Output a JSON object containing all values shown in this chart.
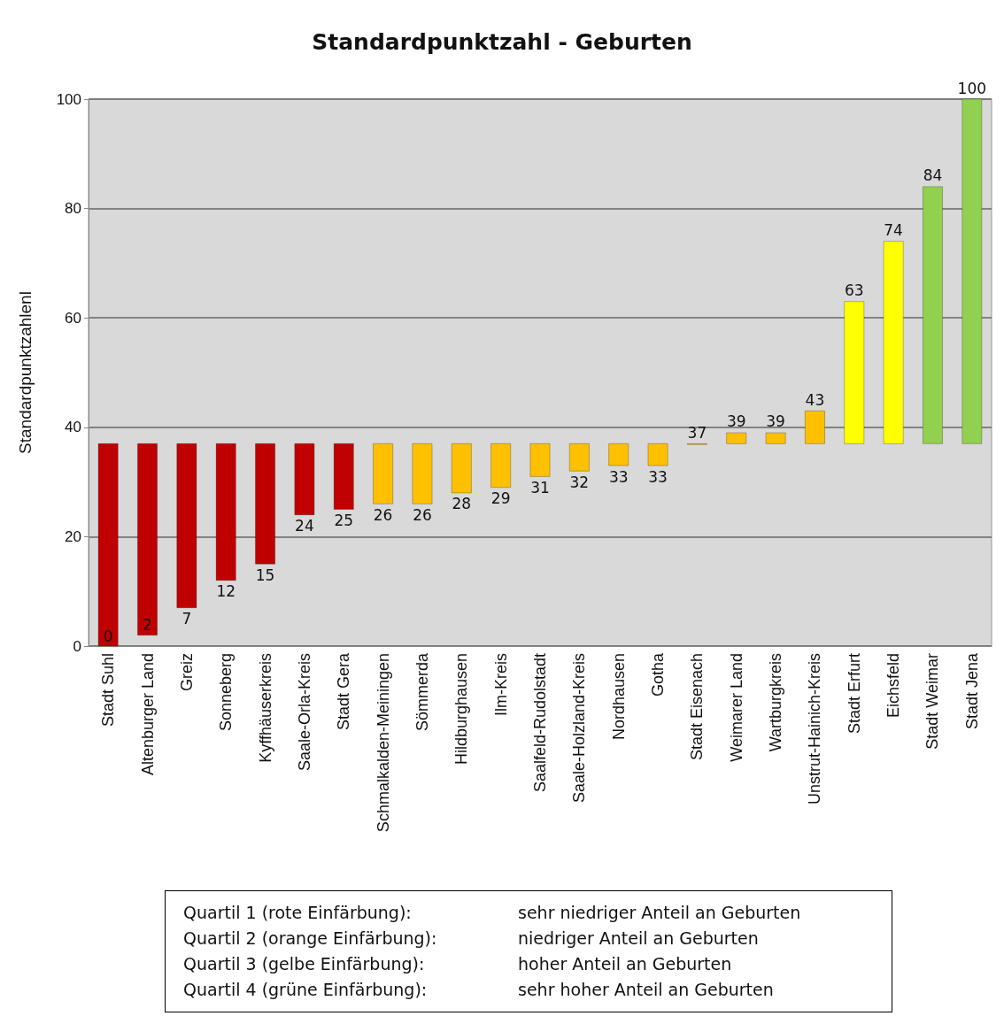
{
  "chart_data": {
    "type": "bar",
    "title": "Standardpunktzahl - Geburten",
    "ylabel": "Standardpunktzahlenl",
    "categories": [
      "Stadt Suhl",
      "Altenburger Land",
      "Greiz",
      "Sonneberg",
      "Kyffhäuserkreis",
      "Saale-Orla-Kreis",
      "Stadt Gera",
      "Schmalkalden-Meiningen",
      "Sömmerda",
      "Hildburghausen",
      "Ilm-Kreis",
      "Saalfeld-Rudolstadt",
      "Saale-Holzland-Kreis",
      "Nordhausen",
      "Gotha",
      "Stadt Eisenach",
      "Weimarer Land",
      "Wartburgkreis",
      "Unstrut-Hainich-Kreis",
      "Stadt Erfurt",
      "Eichsfeld",
      "Stadt Weimar",
      "Stadt Jena"
    ],
    "base": [
      37,
      37,
      37,
      37,
      37,
      37,
      37,
      37,
      37,
      37,
      37,
      37,
      37,
      37,
      37,
      37,
      37,
      37,
      37,
      37,
      37,
      37,
      37
    ],
    "values": [
      -37,
      -35,
      -30,
      -25,
      -22,
      -13,
      -12,
      -11,
      -11,
      -9,
      -8,
      -6,
      -5,
      -4,
      -4,
      0,
      2,
      2,
      6,
      26,
      37,
      47,
      63
    ],
    "value_labels": [
      "0",
      "2",
      "7",
      "12",
      "15",
      "24",
      "25",
      "26",
      "26",
      "28",
      "29",
      "31",
      "32",
      "33",
      "33",
      "37",
      "39",
      "39",
      "43",
      "63",
      "74",
      "84",
      "100"
    ],
    "colors": [
      "#c00000",
      "#c00000",
      "#c00000",
      "#c00000",
      "#c00000",
      "#c00000",
      "#c00000",
      "#ffc000",
      "#ffc000",
      "#ffc000",
      "#ffc000",
      "#ffc000",
      "#ffc000",
      "#ffc000",
      "#ffc000",
      "#ffc000",
      "#ffc000",
      "#ffc000",
      "#ffc000",
      "#ffff00",
      "#ffff00",
      "#92d050",
      "#92d050"
    ],
    "ylim": [
      0,
      100
    ],
    "yticks": [
      0,
      20,
      40,
      60,
      80,
      100
    ],
    "grid": "y",
    "annotations": [
      "Quartil 1 (rote Einfärbung):",
      "sehr niedriger Anteil an Geburten",
      "Quartil 2 (orange Einfärbung):",
      "niedriger Anteil an Geburten",
      "Quartil 3 (gelbe Einfärbung):",
      "hoher Anteil an Geburten",
      "Quartil 4 (grüne Einfärbung):",
      "sehr hoher Anteil an Geburten"
    ]
  }
}
